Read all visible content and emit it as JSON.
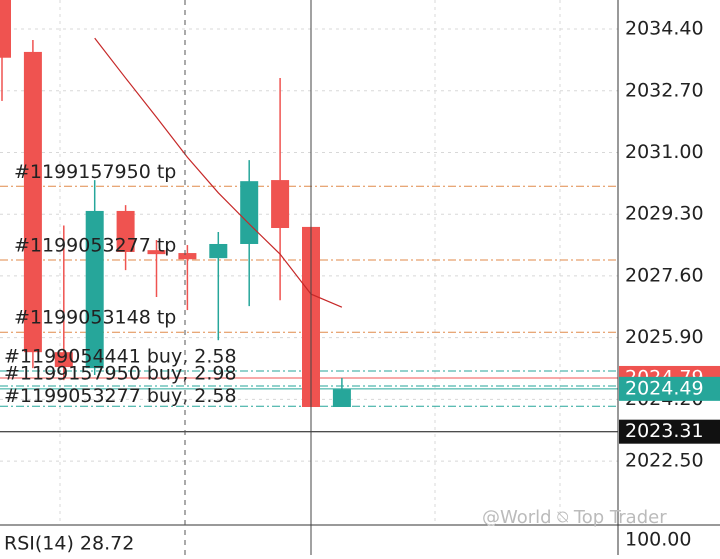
{
  "chart_data": {
    "type": "candlestick",
    "candles": [
      {
        "open": 2035.2,
        "high": 2035.2,
        "low": 2032.42,
        "close": 2033.61
      },
      {
        "open": 2033.77,
        "high": 2034.1,
        "low": 2025.06,
        "close": 2025.5
      },
      {
        "open": 2025.5,
        "high": 2028.99,
        "low": 2024.73,
        "close": 2025.09
      },
      {
        "open": 2025.06,
        "high": 2030.24,
        "low": 2024.87,
        "close": 2029.39
      },
      {
        "open": 2029.39,
        "high": 2029.55,
        "low": 2027.76,
        "close": 2028.26
      },
      {
        "open": 2028.31,
        "high": 2028.59,
        "low": 2027.02,
        "close": 2028.2
      },
      {
        "open": 2028.23,
        "high": 2028.45,
        "low": 2026.66,
        "close": 2028.06
      },
      {
        "open": 2028.09,
        "high": 2028.81,
        "low": 2025.83,
        "close": 2028.48
      },
      {
        "open": 2028.48,
        "high": 2030.79,
        "low": 2026.77,
        "close": 2030.21
      },
      {
        "open": 2030.24,
        "high": 2033.05,
        "low": 2026.93,
        "close": 2028.92
      },
      {
        "open": 2028.95,
        "high": 2028.95,
        "low": 2023.99,
        "close": 2023.99
      },
      {
        "open": 2023.99,
        "high": 2024.79,
        "low": 2023.99,
        "close": 2024.48
      }
    ],
    "up_color": "#26a69a",
    "down_color": "#ef5350",
    "moving_average": {
      "color": "#c62828",
      "values": [
        null,
        null,
        null,
        2034.15,
        2033.05,
        2031.97,
        2030.87,
        2029.89,
        2029.03,
        2028.2,
        2027.1,
        2026.74
      ]
    },
    "ylim": [
      2020.74,
      2035.2
    ],
    "yticks": [
      {
        "value": 2034.4,
        "label": "2034.40"
      },
      {
        "value": 2032.7,
        "label": "2032.70"
      },
      {
        "value": 2031.0,
        "label": "2031.00"
      },
      {
        "value": 2029.3,
        "label": "2029.30"
      },
      {
        "value": 2027.6,
        "label": "2027.60"
      },
      {
        "value": 2025.9,
        "label": "2025.90"
      },
      {
        "value": 2024.2,
        "label": "2024.20"
      },
      {
        "value": 2022.5,
        "label": "2022.50"
      }
    ],
    "grid": true,
    "tp_orders": [
      {
        "label": "#1199157950 tp",
        "price": 2030.07
      },
      {
        "label": "#1199053277 tp",
        "price": 2028.04
      },
      {
        "label": "#1199053148 tp",
        "price": 2026.05
      }
    ],
    "buy_orders": [
      {
        "label": "#1199054441 buy, 2.58",
        "price": 2024.98
      },
      {
        "label": "#1199157950 buy, 2.98",
        "price": 2024.57
      },
      {
        "label": "#1199053277 buy, 2.58",
        "price": 2024.01
      }
    ],
    "bid": 2024.79,
    "ask": 2024.49,
    "crosshair": 2023.31,
    "indicator": {
      "label": "RSI(14) 28.72",
      "level": {
        "value": 100,
        "label": "100.00"
      }
    },
    "watermark": "@World ⍉ Top Trader"
  }
}
